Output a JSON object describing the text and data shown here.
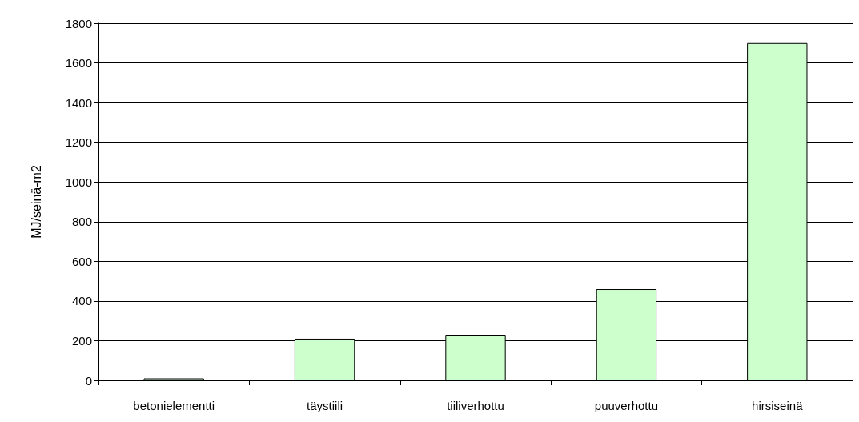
{
  "chart_data": {
    "type": "bar",
    "ylabel": "MJ/seinä-m2",
    "categories": [
      "betonielementti",
      "täystiili",
      "tiiliverhottu",
      "puuverhottu",
      "hirsiseinä"
    ],
    "values": [
      10,
      210,
      230,
      460,
      1700
    ],
    "color": "#ccffcc",
    "ylim": [
      0,
      1800
    ],
    "yticks": [
      0,
      200,
      400,
      600,
      800,
      1000,
      1200,
      1400,
      1600,
      1800
    ],
    "grid": "y"
  }
}
